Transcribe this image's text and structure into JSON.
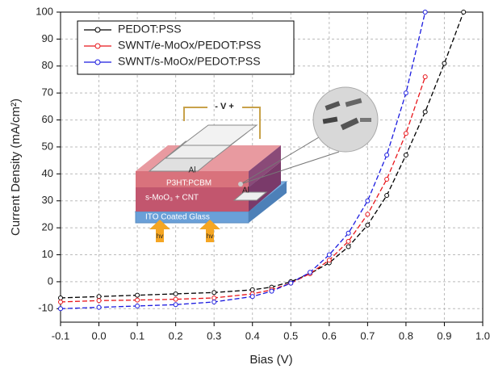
{
  "chart_data": {
    "type": "line",
    "xlabel": "Bias (V)",
    "ylabel": "Current Density (mA/cm²)",
    "x": [
      -0.1,
      0,
      0.1,
      0.2,
      0.3,
      0.4,
      0.45,
      0.5,
      0.55,
      0.6,
      0.65,
      0.7,
      0.75,
      0.8,
      0.85,
      0.9,
      0.95
    ],
    "series": [
      {
        "name": "PEDOT:PSS",
        "color": "#000000",
        "marker": "circle",
        "values": [
          -6,
          -5.5,
          -5,
          -4.5,
          -4,
          -3,
          -2,
          0,
          3,
          7,
          13,
          21,
          32,
          47,
          63,
          81,
          100
        ]
      },
      {
        "name": "SWNT/e-MoOx/PEDOT:PSS",
        "color": "#e8161b",
        "marker": "circle",
        "values": [
          -7.5,
          -7,
          -6.8,
          -6.5,
          -6,
          -4.5,
          -3,
          -0.5,
          3,
          8,
          15,
          25,
          38,
          55,
          76,
          null,
          null
        ]
      },
      {
        "name": "SWNT/s-MoOx/PEDOT:PSS",
        "color": "#1a1adf",
        "marker": "circle",
        "values": [
          -10,
          -9.5,
          -9,
          -8.5,
          -7.5,
          -5.5,
          -3.5,
          -0.5,
          3.5,
          10,
          18,
          30,
          47,
          70,
          100,
          null,
          null
        ]
      }
    ],
    "xlim": [
      -0.1,
      1.0
    ],
    "xticks": [
      -0.1,
      {
        "value": 0,
        "label": "0.0"
      },
      0.1,
      0.2,
      0.3,
      0.4,
      0.5,
      0.6,
      0.7,
      0.8,
      0.9,
      {
        "value": 1,
        "label": "1.0"
      }
    ],
    "ylim": [
      -15,
      100
    ],
    "yticks": [
      -10,
      0,
      10,
      20,
      30,
      40,
      50,
      60,
      70,
      80,
      90,
      100
    ],
    "grid": true,
    "legend": "upper left",
    "annotations": [
      "- V +",
      "Al",
      "P3HT:PCBM",
      "s-MoO₃ + CNT",
      "Al",
      "ITO Coated Glass",
      "hv",
      "hv"
    ]
  }
}
